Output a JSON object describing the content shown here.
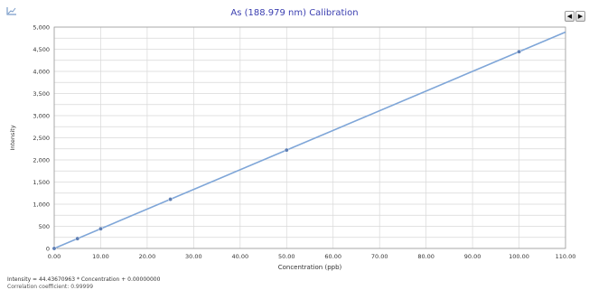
{
  "window": {
    "prev_glyph": "◀",
    "next_glyph": "▶",
    "corner_icon": "chart-corner-icon",
    "prev_icon": "left-arrow-icon",
    "next_icon": "right-arrow-icon"
  },
  "chart_data": {
    "type": "line",
    "title": "As (188.979 nm) Calibration",
    "xlabel": "Concentration (ppb)",
    "ylabel": "Intensity",
    "xlim": [
      0,
      110
    ],
    "ylim": [
      0,
      5000
    ],
    "x_ticks": [
      0,
      10,
      20,
      30,
      40,
      50,
      60,
      70,
      80,
      90,
      100,
      110
    ],
    "x_tick_labels": [
      "0.00",
      "10.00",
      "20.00",
      "30.00",
      "40.00",
      "50.00",
      "60.00",
      "70.00",
      "80.00",
      "90.00",
      "100.00",
      "110.00"
    ],
    "y_ticks": [
      0,
      250,
      500,
      750,
      1000,
      1250,
      1500,
      1750,
      2000,
      2250,
      2500,
      2750,
      3000,
      3250,
      3500,
      3750,
      4000,
      4250,
      4500,
      4750,
      5000
    ],
    "y_tick_labels": [
      "0",
      "",
      "500",
      "",
      "1,000",
      "",
      "1,500",
      "",
      "2,000",
      "",
      "2,500",
      "",
      "3,000",
      "",
      "3,500",
      "",
      "4,000",
      "",
      "4,500",
      "",
      "5,000"
    ],
    "grid": true,
    "series": [
      {
        "kind": "fit_line",
        "slope": 44.43670963,
        "intercept": 0,
        "x": [
          0,
          110
        ],
        "y": [
          0,
          4888
        ]
      },
      {
        "kind": "standards",
        "x": [
          0,
          5,
          10,
          25,
          50,
          100
        ],
        "y": [
          0,
          222,
          444,
          1111,
          2222,
          4444
        ]
      }
    ],
    "equation": "Intensity = 44.43670963 * Concentration + 0.00000000",
    "correlation": "Correlation coefficient: 0.99999",
    "colors": {
      "line": "#7fa6d8",
      "points": "#5f7fb4",
      "grid": "#d8d8d8",
      "plot_bg": "#ffffff",
      "title": "#3b3fb0"
    }
  }
}
